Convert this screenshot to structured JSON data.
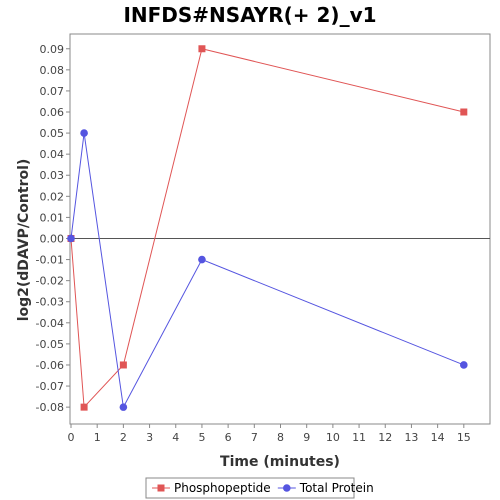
{
  "chart_data": {
    "type": "line",
    "title": "INFDS#NSAYR(+ 2)_v1",
    "xlabel": "Time (minutes)",
    "ylabel": "log2(dDAVP/Control)",
    "xlim": [
      0,
      16
    ],
    "ylim": [
      -0.088,
      0.097
    ],
    "x_ticks": [
      0,
      1,
      2,
      3,
      4,
      5,
      6,
      7,
      8,
      9,
      10,
      11,
      12,
      13,
      14,
      15
    ],
    "y_ticks": [
      -0.08,
      -0.07,
      -0.06,
      -0.05,
      -0.04,
      -0.03,
      -0.02,
      -0.01,
      0.0,
      0.01,
      0.02,
      0.03,
      0.04,
      0.05,
      0.06,
      0.07,
      0.08,
      0.09
    ],
    "y_tick_labels": [
      "-0.08",
      "-0.07",
      "-0.06",
      "-0.05",
      "-0.04",
      "-0.03",
      "-0.02",
      "-0.01",
      "0.00",
      "0.01",
      "0.02",
      "0.03",
      "0.04",
      "0.05",
      "0.06",
      "0.07",
      "0.08",
      "0.09"
    ],
    "zero_line": true,
    "grid": false,
    "legend_position": "bottom",
    "series": [
      {
        "name": "Phosphopeptide",
        "color": "#e05555",
        "marker": "square",
        "x": [
          0,
          0.5,
          2,
          5,
          15
        ],
        "y": [
          0.0,
          -0.08,
          -0.06,
          0.09,
          0.06
        ]
      },
      {
        "name": "Total Protein",
        "color": "#5555e0",
        "marker": "circle",
        "x": [
          0,
          0.5,
          2,
          5,
          15
        ],
        "y": [
          0.0,
          0.05,
          -0.08,
          -0.01,
          -0.06
        ]
      }
    ]
  }
}
